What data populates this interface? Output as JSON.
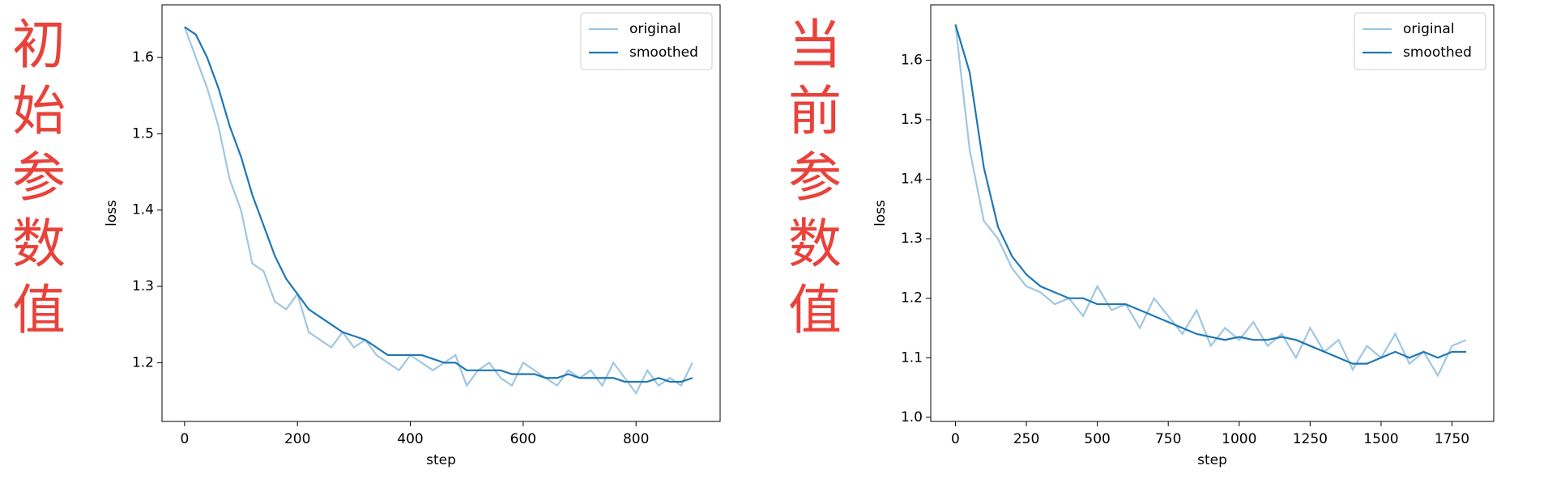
{
  "chart_data": [
    {
      "type": "line",
      "annotation": "初始参数值",
      "xlabel": "step",
      "ylabel": "loss",
      "x": [
        0,
        20,
        40,
        60,
        80,
        100,
        120,
        140,
        160,
        180,
        200,
        220,
        240,
        260,
        280,
        300,
        320,
        340,
        360,
        380,
        400,
        420,
        440,
        460,
        480,
        500,
        520,
        540,
        560,
        580,
        600,
        620,
        640,
        660,
        680,
        700,
        720,
        740,
        760,
        780,
        800,
        820,
        840,
        860,
        880,
        900
      ],
      "series": [
        {
          "name": "original",
          "color": "#9fc7e3",
          "values": [
            1.64,
            1.6,
            1.56,
            1.51,
            1.44,
            1.4,
            1.33,
            1.32,
            1.28,
            1.27,
            1.29,
            1.24,
            1.23,
            1.22,
            1.24,
            1.22,
            1.23,
            1.21,
            1.2,
            1.19,
            1.21,
            1.2,
            1.19,
            1.2,
            1.21,
            1.17,
            1.19,
            1.2,
            1.18,
            1.17,
            1.2,
            1.19,
            1.18,
            1.17,
            1.19,
            1.18,
            1.19,
            1.17,
            1.2,
            1.18,
            1.16,
            1.19,
            1.17,
            1.18,
            1.17,
            1.2
          ]
        },
        {
          "name": "smoothed",
          "color": "#1f77b4",
          "values": [
            1.64,
            1.63,
            1.6,
            1.56,
            1.51,
            1.47,
            1.42,
            1.38,
            1.34,
            1.31,
            1.29,
            1.27,
            1.26,
            1.25,
            1.24,
            1.235,
            1.23,
            1.22,
            1.21,
            1.21,
            1.21,
            1.21,
            1.205,
            1.2,
            1.2,
            1.19,
            1.19,
            1.19,
            1.19,
            1.185,
            1.185,
            1.185,
            1.18,
            1.18,
            1.185,
            1.18,
            1.18,
            1.18,
            1.18,
            1.175,
            1.175,
            1.175,
            1.18,
            1.175,
            1.175,
            1.18
          ]
        }
      ],
      "xlim": [
        -40,
        949
      ],
      "ylim": [
        1.123,
        1.669
      ],
      "xticks": [
        0,
        200,
        400,
        600,
        800
      ],
      "yticks": [
        1.2,
        1.3,
        1.4,
        1.5,
        1.6
      ],
      "legend": "upper right"
    },
    {
      "type": "line",
      "annotation": "当前参数值",
      "xlabel": "step",
      "ylabel": "loss",
      "x": [
        0,
        50,
        100,
        150,
        200,
        250,
        300,
        350,
        400,
        450,
        500,
        550,
        600,
        650,
        700,
        750,
        800,
        850,
        900,
        950,
        1000,
        1050,
        1100,
        1150,
        1200,
        1250,
        1300,
        1350,
        1400,
        1450,
        1500,
        1550,
        1600,
        1650,
        1700,
        1750,
        1800
      ],
      "series": [
        {
          "name": "original",
          "color": "#9fc7e3",
          "values": [
            1.66,
            1.45,
            1.33,
            1.3,
            1.25,
            1.22,
            1.21,
            1.19,
            1.2,
            1.17,
            1.22,
            1.18,
            1.19,
            1.15,
            1.2,
            1.17,
            1.14,
            1.18,
            1.12,
            1.15,
            1.13,
            1.16,
            1.12,
            1.14,
            1.1,
            1.15,
            1.11,
            1.13,
            1.08,
            1.12,
            1.1,
            1.14,
            1.09,
            1.11,
            1.07,
            1.12,
            1.13
          ]
        },
        {
          "name": "smoothed",
          "color": "#1f77b4",
          "values": [
            1.66,
            1.58,
            1.42,
            1.32,
            1.27,
            1.24,
            1.22,
            1.21,
            1.2,
            1.2,
            1.19,
            1.19,
            1.19,
            1.18,
            1.17,
            1.16,
            1.15,
            1.14,
            1.135,
            1.13,
            1.135,
            1.13,
            1.13,
            1.135,
            1.13,
            1.12,
            1.11,
            1.1,
            1.09,
            1.09,
            1.1,
            1.11,
            1.1,
            1.11,
            1.1,
            1.11,
            1.11
          ]
        }
      ],
      "xlim": [
        -87,
        1897
      ],
      "ylim": [
        0.993,
        1.693
      ],
      "xticks": [
        0,
        250,
        500,
        750,
        1000,
        1250,
        1500,
        1750
      ],
      "yticks": [
        {
          "value": 1,
          "label": "1.0"
        },
        1.1,
        1.2,
        1.3,
        1.4,
        1.5,
        1.6
      ],
      "legend": "upper right"
    }
  ]
}
